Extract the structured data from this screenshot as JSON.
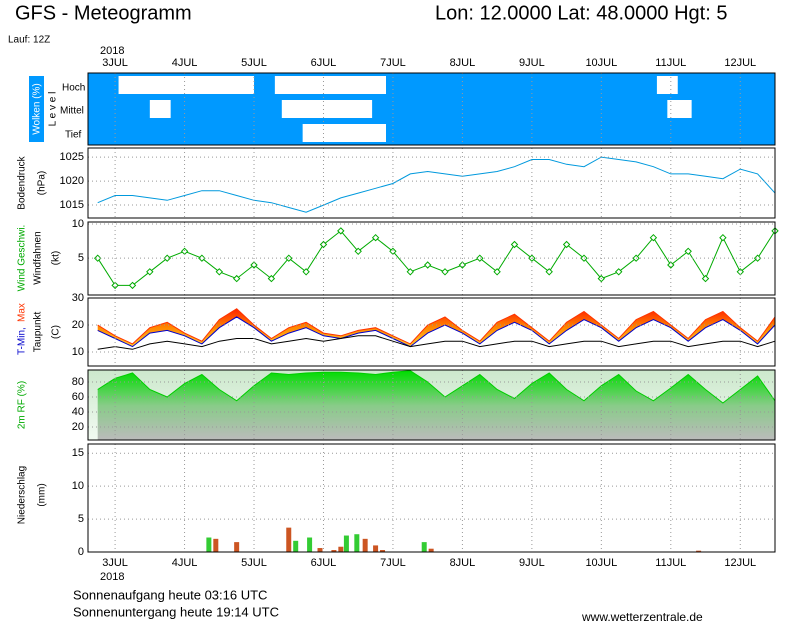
{
  "header": {
    "title": "GFS - Meteogramm",
    "location": "Lon: 12.0000 Lat: 48.0000 Hgt: 5",
    "run": "Lauf: 12Z"
  },
  "time_axis": {
    "year": "2018",
    "xlim": [
      2.61,
      12.5
    ],
    "xticks": [
      {
        "value": 3,
        "label": "3JUL"
      },
      {
        "value": 4,
        "label": "4JUL"
      },
      {
        "value": 5,
        "label": "5JUL"
      },
      {
        "value": 6,
        "label": "6JUL"
      },
      {
        "value": 7,
        "label": "7JUL"
      },
      {
        "value": 8,
        "label": "8JUL"
      },
      {
        "value": 9,
        "label": "9JUL"
      },
      {
        "value": 10,
        "label": "10JUL"
      },
      {
        "value": 11,
        "label": "11JUL"
      },
      {
        "value": 12,
        "label": "12JUL"
      }
    ]
  },
  "chart_data": [
    {
      "type": "cloud",
      "ylabel": "Wolken (%)",
      "ylabel2": "L e v e l",
      "grid": true,
      "series": [
        {
          "name": "Hoch",
          "color": "#ffffff",
          "spans": [
            [
              3.05,
              5.0
            ],
            [
              5.3,
              6.9
            ],
            [
              10.8,
              11.1
            ]
          ]
        },
        {
          "name": "Mittel",
          "color": "#ffffff",
          "spans": [
            [
              3.5,
              3.8
            ],
            [
              5.4,
              6.7
            ],
            [
              10.95,
              11.3
            ]
          ]
        },
        {
          "name": "Tief",
          "color": "#ffffff",
          "spans": [
            [
              5.7,
              6.9
            ]
          ]
        }
      ]
    },
    {
      "type": "line",
      "ylabel": "Bodendruck",
      "ylabel2": "(hPa)",
      "grid": true,
      "ylim": [
        1012.3,
        1026.9
      ],
      "yticks": [
        1015,
        1020,
        1025
      ],
      "x": [
        2.75,
        3,
        3.25,
        3.5,
        3.75,
        4,
        4.25,
        4.5,
        4.75,
        5,
        5.25,
        5.5,
        5.75,
        6,
        6.25,
        6.5,
        6.75,
        7,
        7.25,
        7.5,
        7.75,
        8,
        8.25,
        8.5,
        8.75,
        9,
        9.25,
        9.5,
        9.75,
        10,
        10.25,
        10.5,
        10.75,
        11,
        11.25,
        11.5,
        11.75,
        12,
        12.25,
        12.5
      ],
      "series": [
        {
          "color": "#0099dd",
          "values": [
            1015.5,
            1017,
            1017,
            1016.5,
            1016,
            1017,
            1018,
            1018,
            1017,
            1016,
            1015.5,
            1014.5,
            1013.5,
            1015,
            1016.5,
            1017.5,
            1018.5,
            1019.5,
            1021.5,
            1022,
            1021.5,
            1021,
            1021.5,
            1022,
            1023,
            1024.5,
            1024.5,
            1023.5,
            1023,
            1025,
            1024.5,
            1024,
            1023,
            1021.5,
            1021.5,
            1021,
            1020.5,
            1022.5,
            1021.5,
            1017.5
          ]
        }
      ]
    },
    {
      "type": "line",
      "ylabel": "Wind Geschwi.",
      "ylabel2": "Windfahnen",
      "ylabel3": "(kt)",
      "grid": true,
      "markers": true,
      "ylim": [
        -0.4,
        10.3
      ],
      "yticks": [
        5,
        10
      ],
      "x": [
        2.75,
        3,
        3.25,
        3.5,
        3.75,
        4,
        4.25,
        4.5,
        4.75,
        5,
        5.25,
        5.5,
        5.75,
        6,
        6.25,
        6.5,
        6.75,
        7,
        7.25,
        7.5,
        7.75,
        8,
        8.25,
        8.5,
        8.75,
        9,
        9.25,
        9.5,
        9.75,
        10,
        10.25,
        10.5,
        10.75,
        11,
        11.25,
        11.5,
        11.75,
        12,
        12.25,
        12.5
      ],
      "series": [
        {
          "color": "#00aa00",
          "values": [
            5,
            1,
            1,
            3,
            5,
            6,
            5,
            3,
            2,
            4,
            2,
            5,
            3,
            7,
            9,
            6,
            8,
            6,
            3,
            4,
            3,
            4,
            5,
            3,
            7,
            5,
            3,
            7,
            5,
            2,
            3,
            5,
            8,
            4,
            6,
            2,
            8,
            3,
            5,
            9
          ]
        }
      ]
    },
    {
      "type": "range",
      "ylabel": "T-Min,",
      "ylabel_b": "Max",
      "ylabel2": "Taupunkt",
      "ylabel3": "(C)",
      "grid": true,
      "ylim": [
        4.8,
        30
      ],
      "yticks": [
        10,
        20,
        30
      ],
      "x": [
        2.75,
        3,
        3.25,
        3.5,
        3.75,
        4,
        4.25,
        4.5,
        4.75,
        5,
        5.25,
        5.5,
        5.75,
        6,
        6.25,
        6.5,
        6.75,
        7,
        7.25,
        7.5,
        7.75,
        8,
        8.25,
        8.5,
        8.75,
        9,
        9.25,
        9.5,
        9.75,
        10,
        10.25,
        10.5,
        10.75,
        11,
        11.25,
        11.5,
        11.75,
        12,
        12.25,
        12.5
      ],
      "series": [
        {
          "name": "Max",
          "color": "#ff3300",
          "values": [
            20,
            16,
            13,
            19,
            21,
            17,
            14,
            22,
            26,
            20,
            15,
            19,
            21,
            17,
            16,
            18,
            19,
            16,
            13,
            20,
            23,
            18,
            14,
            21,
            24,
            19,
            14,
            21,
            25,
            20,
            15,
            22,
            25,
            20,
            15,
            22,
            25,
            19,
            14,
            23
          ]
        },
        {
          "name": "T-Min,",
          "color": "#0000cc",
          "values": [
            18,
            15,
            12,
            17,
            18,
            16,
            13,
            19,
            23,
            19,
            14,
            17,
            19,
            16,
            15,
            17,
            18,
            15,
            12,
            17,
            20,
            17,
            13,
            18,
            21,
            18,
            13,
            18,
            22,
            19,
            14,
            19,
            22,
            19,
            14,
            19,
            22,
            18,
            13,
            20
          ]
        },
        {
          "name": "Taupunkt",
          "color": "#000000",
          "values": [
            11,
            12,
            11,
            13,
            14,
            13,
            12,
            14,
            15,
            15,
            13,
            14,
            15,
            14,
            15,
            16,
            16,
            14,
            12,
            13,
            14,
            14,
            12,
            13,
            14,
            14,
            12,
            13,
            14,
            14,
            12,
            13,
            14,
            14,
            12,
            13,
            14,
            14,
            12,
            14
          ]
        }
      ]
    },
    {
      "type": "area",
      "ylabel": "2m RF (%)",
      "grid": true,
      "ylim": [
        2.7,
        96
      ],
      "yticks": [
        20,
        40,
        60,
        80
      ],
      "x": [
        2.75,
        3,
        3.25,
        3.5,
        3.75,
        4,
        4.25,
        4.5,
        4.75,
        5,
        5.25,
        5.5,
        5.75,
        6,
        6.25,
        6.5,
        6.75,
        7,
        7.25,
        7.5,
        7.75,
        8,
        8.25,
        8.5,
        8.75,
        9,
        9.25,
        9.5,
        9.75,
        10,
        10.25,
        10.5,
        10.75,
        11,
        11.25,
        11.5,
        11.75,
        12,
        12.25,
        12.5
      ],
      "series": [
        {
          "color": "#00cc00",
          "values": [
            70,
            85,
            92,
            70,
            60,
            78,
            90,
            70,
            55,
            75,
            92,
            90,
            92,
            93,
            93,
            92,
            90,
            93,
            95,
            80,
            60,
            75,
            90,
            70,
            58,
            78,
            92,
            70,
            55,
            75,
            90,
            68,
            55,
            72,
            90,
            70,
            52,
            70,
            88,
            55
          ]
        }
      ]
    },
    {
      "type": "bar",
      "ylabel": "Niederschlag",
      "ylabel2": "(mm)",
      "grid": true,
      "ylim": [
        0,
        16.4
      ],
      "yticks": [
        0,
        5,
        10,
        15
      ],
      "series": [
        {
          "color": "#33cc33",
          "x": [
            4.35,
            5.6,
            5.8,
            6.33,
            6.48,
            7.45
          ],
          "values": [
            2.2,
            1.7,
            2.2,
            2.5,
            2.7,
            1.5
          ]
        },
        {
          "color": "#cc5522",
          "x": [
            4.45,
            4.75,
            5.5,
            5.95,
            6.15,
            6.25,
            6.6,
            6.75,
            6.85,
            7.55,
            11.4
          ],
          "values": [
            2.0,
            1.5,
            3.7,
            0.6,
            0.3,
            0.8,
            2.0,
            1.0,
            0.3,
            0.5,
            0.2
          ]
        }
      ]
    }
  ],
  "footer": {
    "sunrise": "Sonnenaufgang heute 03:16 UTC",
    "sunset": "Sonnenuntergang heute 19:14 UTC",
    "source": "www.wetterzentrale.de"
  }
}
